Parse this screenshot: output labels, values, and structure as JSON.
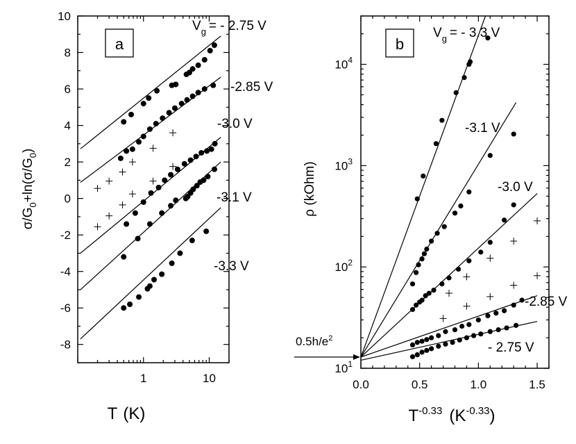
{
  "chart_data": [
    {
      "type": "scatter",
      "panel": "a",
      "x_scale": "log",
      "xlabel_main": "T",
      "xlabel_unit": "(K)",
      "ylabel_parts": [
        "σ/G",
        "0",
        "+ln(σ/G",
        "0",
        ")"
      ],
      "xlim": [
        0.1,
        20
      ],
      "ylim": [
        -9,
        10
      ],
      "x_tick_labels": [
        {
          "v": 1,
          "label": "1"
        },
        {
          "v": 10,
          "label": "10"
        }
      ],
      "y_tick_labels": [
        {
          "v": -8,
          "label": "-8"
        },
        {
          "v": -6,
          "label": "-6"
        },
        {
          "v": -4,
          "label": "-4"
        },
        {
          "v": -2,
          "label": "-2"
        },
        {
          "v": 0,
          "label": "0"
        },
        {
          "v": 2,
          "label": "2"
        },
        {
          "v": 4,
          "label": "4"
        },
        {
          "v": 6,
          "label": "6"
        },
        {
          "v": 8,
          "label": "8"
        },
        {
          "v": 10,
          "label": "10"
        }
      ],
      "series": [
        {
          "name": "-2.75 V",
          "label_main": "V",
          "label_sub": "g",
          "label_rest": "= - 2.75 V",
          "fit": {
            "x0": 0.11,
            "y0": 2.72,
            "x1": 15,
            "y1": 8.9
          },
          "points": [
            [
              0.5,
              4.2
            ],
            [
              0.65,
              4.6
            ],
            [
              1.0,
              5.2
            ],
            [
              1.2,
              5.5
            ],
            [
              1.6,
              5.9
            ],
            [
              2.7,
              6.2
            ],
            [
              3.1,
              6.25
            ],
            [
              4.5,
              6.8
            ],
            [
              5.0,
              6.9
            ],
            [
              5.6,
              7.1
            ],
            [
              6.8,
              7.3
            ],
            [
              8.5,
              7.6
            ],
            [
              10.3,
              8.1
            ],
            [
              12,
              8.4
            ]
          ]
        },
        {
          "name": "-2.85 V",
          "label_main": "-2.85 V",
          "fit": {
            "x0": 0.11,
            "y0": 0.88,
            "x1": 15,
            "y1": 6.65
          },
          "points": [
            [
              0.45,
              2.2
            ],
            [
              0.55,
              2.6
            ],
            [
              0.68,
              2.7
            ],
            [
              0.85,
              3.1
            ],
            [
              1.0,
              3.4
            ],
            [
              1.25,
              3.8
            ],
            [
              1.55,
              4.1
            ],
            [
              1.95,
              4.4
            ],
            [
              2.45,
              4.7
            ],
            [
              3.0,
              4.95
            ],
            [
              3.8,
              5.2
            ],
            [
              4.6,
              5.4
            ],
            [
              5.6,
              5.6
            ],
            [
              6.8,
              5.8
            ],
            [
              8.5,
              6.0
            ],
            [
              11.5,
              6.2
            ]
          ]
        },
        {
          "name": "-3.0 V",
          "label_main": "-3.0 V",
          "fit": {
            "x0": 0.11,
            "y0": -3.0,
            "x1": 15,
            "y1": 3.35
          },
          "points": [
            [
              0.55,
              -1.4
            ],
            [
              0.75,
              -0.8
            ],
            [
              1.0,
              -0.2
            ],
            [
              1.3,
              0.3
            ],
            [
              1.7,
              0.6
            ],
            [
              2.1,
              1.0
            ],
            [
              2.6,
              1.3
            ],
            [
              3.3,
              1.6
            ],
            [
              4.2,
              1.9
            ],
            [
              5.2,
              2.1
            ],
            [
              6.3,
              2.3
            ],
            [
              7.6,
              2.5
            ],
            [
              9.2,
              2.6
            ],
            [
              10.8,
              2.7
            ],
            [
              12.2,
              3.0
            ]
          ]
        },
        {
          "name": "-3.1 V",
          "label_main": "-3.1 V",
          "fit": {
            "x0": 0.11,
            "y0": -5.0,
            "x1": 15,
            "y1": 2.0
          },
          "points": [
            [
              0.5,
              -3.2
            ],
            [
              0.82,
              -2.2
            ],
            [
              1.25,
              -1.4
            ],
            [
              1.9,
              -0.8
            ],
            [
              2.6,
              -0.4
            ],
            [
              3.1,
              -0.1
            ],
            [
              4.4,
              0.0
            ],
            [
              4.7,
              0.1
            ],
            [
              5.2,
              0.3
            ],
            [
              5.7,
              0.5
            ],
            [
              6.5,
              0.7
            ],
            [
              7.3,
              0.9
            ],
            [
              8.2,
              1.0
            ],
            [
              9.5,
              1.2
            ],
            [
              12,
              1.6
            ]
          ]
        },
        {
          "name": "-3.3 V",
          "label_main": "-3.3 V",
          "fit": {
            "x0": 0.11,
            "y0": -7.7,
            "x1": 15,
            "y1": -0.5
          },
          "points": [
            [
              0.5,
              -6.0
            ],
            [
              0.62,
              -5.8
            ],
            [
              0.85,
              -5.4
            ],
            [
              1.15,
              -4.95
            ],
            [
              1.25,
              -4.8
            ],
            [
              1.45,
              -4.45
            ],
            [
              1.9,
              -4.15
            ],
            [
              2.7,
              -3.55
            ],
            [
              3.6,
              -3.0
            ],
            [
              5.5,
              -2.3
            ],
            [
              9.0,
              -1.8
            ]
          ]
        },
        {
          "name": "crosses",
          "marker": "+",
          "points": [
            [
              0.2,
              0.55
            ],
            [
              0.3,
              0.95
            ],
            [
              0.48,
              1.45
            ],
            [
              0.68,
              2.0
            ],
            [
              1.4,
              2.75
            ],
            [
              2.8,
              3.6
            ],
            [
              0.2,
              -1.55
            ],
            [
              0.3,
              -0.95
            ],
            [
              0.48,
              -0.35
            ],
            [
              0.68,
              0.25
            ],
            [
              1.4,
              0.95
            ],
            [
              2.8,
              1.75
            ]
          ]
        }
      ]
    },
    {
      "type": "scatter",
      "panel": "b",
      "y_scale": "log",
      "xlabel_main": "T",
      "xlabel_sup": "-0.33",
      "xlabel_unit": "(K",
      "xlabel_unit_sup": "-0.33",
      "xlabel_close": ")",
      "ylabel": "ρ (kOhm)",
      "xlim": [
        0,
        1.6
      ],
      "ylim": [
        10,
        30000
      ],
      "x_tick_labels": [
        {
          "v": 0,
          "label": "0.0"
        },
        {
          "v": 0.5,
          "label": "0.5"
        },
        {
          "v": 1.0,
          "label": "1.0"
        },
        {
          "v": 1.5,
          "label": "1.5"
        }
      ],
      "y_tick_labels": [
        {
          "v": 10,
          "main": "10",
          "sup": "1"
        },
        {
          "v": 100,
          "main": "10",
          "sup": "2"
        },
        {
          "v": 1000,
          "main": "10",
          "sup": "3"
        },
        {
          "v": 10000,
          "main": "10",
          "sup": "4"
        }
      ],
      "annotation": {
        "text_main": "0.5h/e",
        "text_sup": "2",
        "arrow_to_y": 12.9
      },
      "series": [
        {
          "name": "-3.3 V",
          "label_main": "V",
          "label_sub": "g",
          "label_rest": "= - 3.3 V",
          "fit": {
            "x0": 0,
            "y0": 12.9,
            "x1": 1.06,
            "y1": 30000
          },
          "points": [
            [
              0.48,
              470
            ],
            [
              0.53,
              790
            ],
            [
              0.64,
              1650
            ],
            [
              0.69,
              2800
            ],
            [
              0.81,
              5250
            ],
            [
              0.88,
              7400
            ],
            [
              0.92,
              10000
            ],
            [
              0.93,
              10600
            ],
            [
              1.08,
              18200
            ]
          ]
        },
        {
          "name": "-3.1 V",
          "label_main": "-3.1 V",
          "fit": {
            "x0": 0,
            "y0": 12.9,
            "x1": 1.32,
            "y1": 4200
          },
          "points": [
            [
              0.44,
              68
            ],
            [
              0.47,
              88
            ],
            [
              0.49,
              105
            ],
            [
              0.52,
              120
            ],
            [
              0.54,
              135
            ],
            [
              0.56,
              150
            ],
            [
              0.6,
              180
            ],
            [
              0.65,
              215
            ],
            [
              0.71,
              250
            ],
            [
              0.8,
              340
            ],
            [
              0.85,
              400
            ],
            [
              0.92,
              550
            ],
            [
              1.1,
              1260
            ],
            [
              1.3,
              2050
            ]
          ]
        },
        {
          "name": "-3.0 V",
          "label_main": "-3.0 V",
          "fit": {
            "x0": 0,
            "y0": 12.9,
            "x1": 1.5,
            "y1": 530
          },
          "points": [
            [
              0.44,
              38
            ],
            [
              0.47,
              42
            ],
            [
              0.5,
              45
            ],
            [
              0.52,
              47
            ],
            [
              0.55,
              52
            ],
            [
              0.58,
              55
            ],
            [
              0.62,
              59
            ],
            [
              0.69,
              68
            ],
            [
              0.75,
              78
            ],
            [
              0.83,
              95
            ],
            [
              0.92,
              115
            ],
            [
              1.02,
              140
            ],
            [
              1.1,
              175
            ],
            [
              1.22,
              290
            ],
            [
              1.3,
              410
            ]
          ]
        },
        {
          "name": "-2.85 V",
          "label_main": "-2.85 V",
          "fit": {
            "x0": 0,
            "y0": 12.9,
            "x1": 1.5,
            "y1": 52
          },
          "points": [
            [
              0.44,
              17
            ],
            [
              0.48,
              18
            ],
            [
              0.52,
              18.5
            ],
            [
              0.56,
              19.2
            ],
            [
              0.6,
              20
            ],
            [
              0.66,
              21
            ],
            [
              0.72,
              23
            ],
            [
              0.8,
              24
            ],
            [
              0.86,
              26
            ],
            [
              0.92,
              27
            ],
            [
              1.0,
              30
            ],
            [
              1.08,
              33
            ],
            [
              1.15,
              35
            ],
            [
              1.22,
              37
            ],
            [
              1.3,
              42
            ],
            [
              1.37,
              47
            ]
          ]
        },
        {
          "name": "- 2.75 V",
          "label_main": "- 2.75 V",
          "fit": {
            "x0": 0,
            "y0": 12.0,
            "x1": 1.5,
            "y1": 29
          },
          "points": [
            [
              0.44,
              13
            ],
            [
              0.48,
              13.6
            ],
            [
              0.52,
              14.4
            ],
            [
              0.56,
              15
            ],
            [
              0.6,
              15.6
            ],
            [
              0.66,
              16.5
            ],
            [
              0.72,
              17.3
            ],
            [
              0.78,
              18
            ],
            [
              0.84,
              19
            ],
            [
              0.9,
              20
            ],
            [
              0.96,
              21
            ],
            [
              1.02,
              21.8
            ],
            [
              1.1,
              23
            ],
            [
              1.17,
              24
            ],
            [
              1.24,
              25
            ],
            [
              1.32,
              26.5
            ]
          ]
        },
        {
          "name": "crosses",
          "marker": "+",
          "points": [
            [
              0.7,
              31
            ],
            [
              0.75,
              55
            ],
            [
              0.9,
              41
            ],
            [
              0.9,
              80
            ],
            [
              1.1,
              51
            ],
            [
              1.1,
              122
            ],
            [
              1.3,
              66
            ],
            [
              1.3,
              180
            ],
            [
              1.5,
              82
            ],
            [
              1.5,
              285
            ]
          ]
        }
      ]
    }
  ],
  "panel_labels": {
    "a": "a",
    "b": "b"
  }
}
